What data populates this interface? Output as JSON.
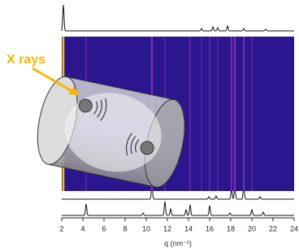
{
  "annotation": "X rays",
  "axis": {
    "label": "q (nm⁻¹)",
    "min": 2,
    "max": 24,
    "ticks": [
      2,
      4,
      6,
      8,
      10,
      12,
      14,
      16,
      18,
      20,
      22,
      24
    ]
  }
}
